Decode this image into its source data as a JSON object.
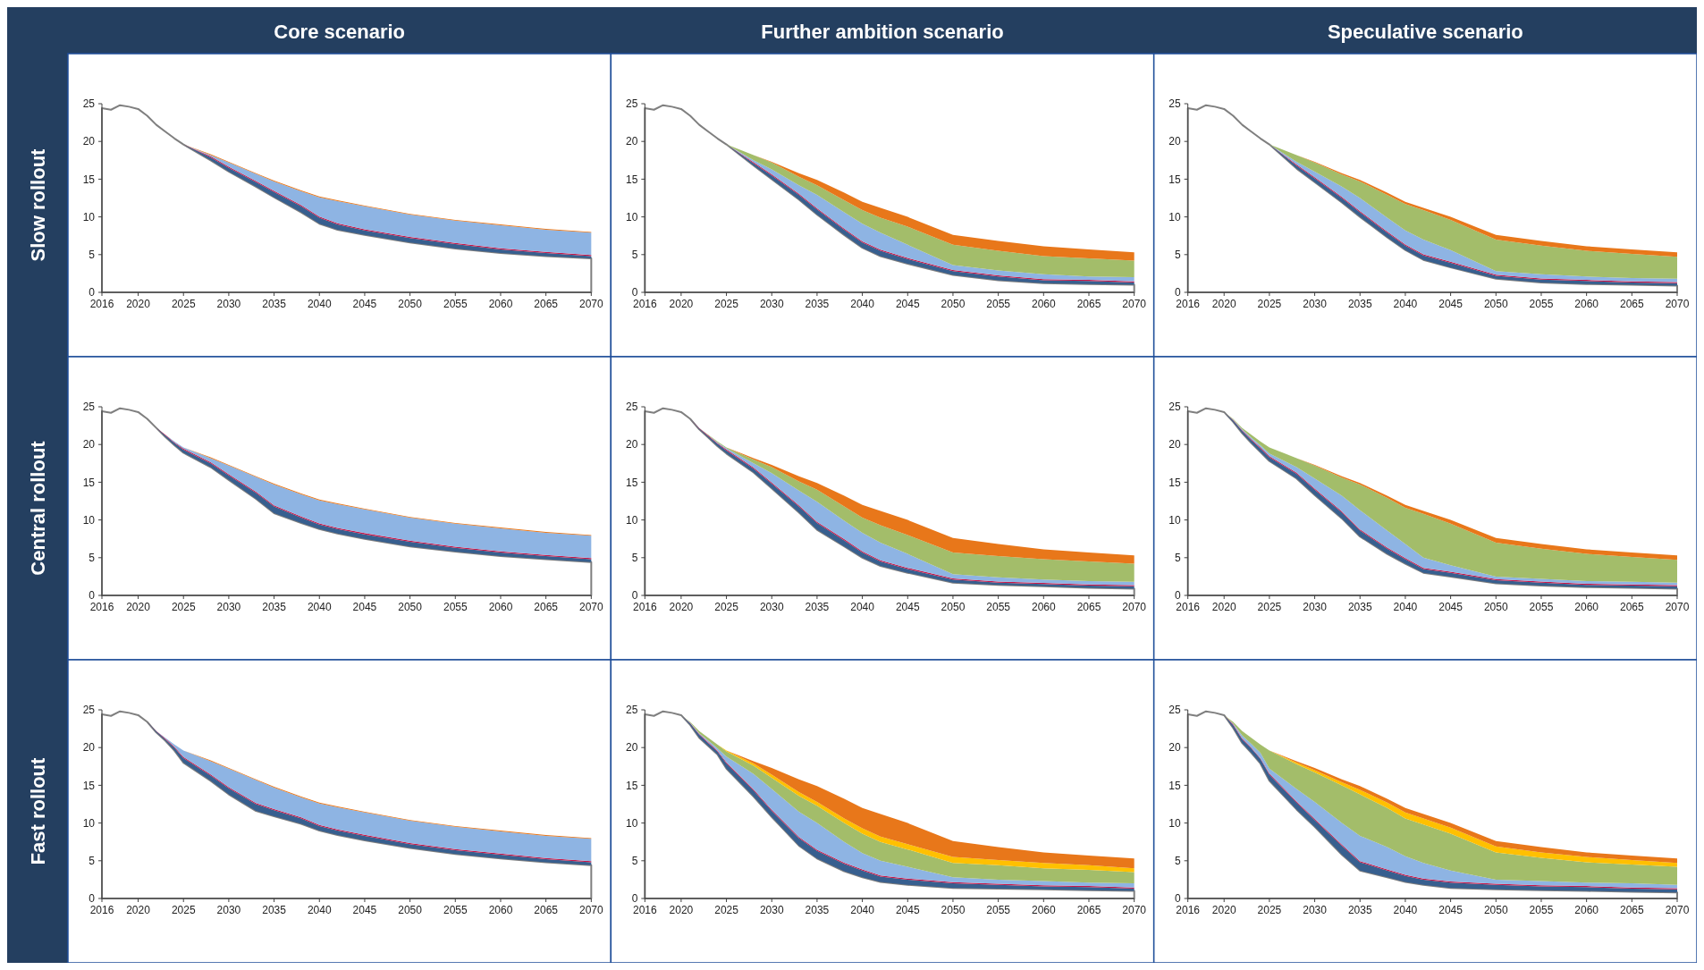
{
  "chart_data": [
    {
      "type": "area",
      "stacked": true,
      "title": "Core scenario",
      "ylabel": "Slow rollout",
      "x": [
        2016,
        2017,
        2018,
        2019,
        2020,
        2021,
        2022,
        2023,
        2024,
        2025,
        2028,
        2030,
        2033,
        2035,
        2038,
        2040,
        2042,
        2045,
        2050,
        2055,
        2060,
        2065,
        2070
      ],
      "xlim": [
        2016,
        2070
      ],
      "ylim": [
        0,
        25
      ],
      "xticks": [
        2016,
        2020,
        2025,
        2030,
        2035,
        2040,
        2045,
        2050,
        2055,
        2060,
        2065,
        2070
      ],
      "yticks": [
        0,
        5,
        10,
        15,
        20,
        25
      ],
      "series": [
        {
          "color": "#ffffff",
          "values": [
            24.4,
            24.2,
            24.8,
            24.6,
            24.3,
            23.4,
            22.2,
            21.3,
            20.4,
            19.6,
            17.5,
            16.0,
            14.0,
            12.6,
            10.6,
            9.1,
            8.3,
            7.6,
            6.6,
            5.8,
            5.2,
            4.8,
            4.5
          ]
        },
        {
          "color": "#375f8f",
          "values": [
            0,
            0,
            0,
            0,
            0,
            0,
            0,
            0,
            0,
            0,
            0.4,
            0.5,
            0.6,
            0.7,
            0.8,
            0.8,
            0.7,
            0.6,
            0.6,
            0.6,
            0.5,
            0.4,
            0.3
          ]
        },
        {
          "color": "#c8184a",
          "values": [
            0,
            0,
            0,
            0,
            0,
            0,
            0,
            0,
            0,
            0,
            0.15,
            0.15,
            0.15,
            0.15,
            0.15,
            0.15,
            0.15,
            0.15,
            0.15,
            0.15,
            0.15,
            0.15,
            0.15
          ]
        },
        {
          "color": "#8eb4e3",
          "values": [
            0,
            0,
            0,
            0,
            0,
            0,
            0,
            0,
            0,
            0,
            0.15,
            0.55,
            0.95,
            1.25,
            1.85,
            2.55,
            2.95,
            3.05,
            2.95,
            2.95,
            3.05,
            2.95,
            2.95
          ]
        },
        {
          "color": "#e8771a",
          "values": [
            0,
            0,
            0,
            0,
            0,
            0,
            0,
            0,
            0,
            0,
            0.1,
            0.1,
            0.1,
            0.1,
            0.1,
            0.1,
            0.1,
            0.1,
            0.1,
            0.1,
            0.1,
            0.1,
            0.1
          ]
        }
      ]
    },
    {
      "type": "area",
      "stacked": true,
      "title": "Further ambition scenario",
      "x": [
        2016,
        2017,
        2018,
        2019,
        2020,
        2021,
        2022,
        2023,
        2024,
        2025,
        2028,
        2030,
        2033,
        2035,
        2038,
        2040,
        2042,
        2045,
        2050,
        2055,
        2060,
        2065,
        2070
      ],
      "xlim": [
        2016,
        2070
      ],
      "ylim": [
        0,
        25
      ],
      "xticks": [
        2016,
        2020,
        2025,
        2030,
        2035,
        2040,
        2045,
        2050,
        2055,
        2060,
        2065,
        2070
      ],
      "yticks": [
        0,
        5,
        10,
        15,
        20,
        25
      ],
      "series": [
        {
          "color": "#ffffff",
          "values": [
            24.4,
            24.2,
            24.8,
            24.6,
            24.3,
            23.4,
            22.2,
            21.3,
            20.4,
            19.6,
            16.8,
            15.0,
            12.3,
            10.3,
            7.6,
            5.9,
            4.8,
            3.8,
            2.3,
            1.6,
            1.2,
            1.1,
            1.0
          ]
        },
        {
          "color": "#375f8f",
          "values": [
            0,
            0,
            0,
            0,
            0,
            0,
            0,
            0,
            0,
            0,
            0.3,
            0.5,
            0.6,
            0.7,
            0.7,
            0.7,
            0.7,
            0.6,
            0.5,
            0.5,
            0.4,
            0.4,
            0.3
          ]
        },
        {
          "color": "#c8184a",
          "values": [
            0,
            0,
            0,
            0,
            0,
            0,
            0,
            0,
            0,
            0,
            0.15,
            0.15,
            0.15,
            0.15,
            0.15,
            0.15,
            0.15,
            0.15,
            0.15,
            0.15,
            0.15,
            0.15,
            0.15
          ]
        },
        {
          "color": "#8eb4e3",
          "values": [
            0,
            0,
            0,
            0,
            0,
            0,
            0,
            0,
            0,
            0,
            0.25,
            0.65,
            1.15,
            1.75,
            2.15,
            2.35,
            2.25,
            1.75,
            0.65,
            0.65,
            0.65,
            0.45,
            0.55
          ]
        },
        {
          "color": "#a3bd6a",
          "values": [
            0,
            0,
            0,
            0,
            0,
            0,
            0,
            0,
            0,
            0,
            0.7,
            0.9,
            1.1,
            1.3,
            1.6,
            1.8,
            2.0,
            2.4,
            2.7,
            2.6,
            2.4,
            2.4,
            2.2
          ]
        },
        {
          "color": "#e8771a",
          "values": [
            0,
            0,
            0,
            0,
            0,
            0,
            0,
            0,
            0,
            0,
            0,
            0.1,
            0.5,
            0.7,
            1.0,
            1.1,
            1.3,
            1.3,
            1.3,
            1.3,
            1.3,
            1.2,
            1.1
          ]
        }
      ]
    },
    {
      "type": "area",
      "stacked": true,
      "title": "Speculative scenario",
      "x": [
        2016,
        2017,
        2018,
        2019,
        2020,
        2021,
        2022,
        2023,
        2024,
        2025,
        2028,
        2030,
        2033,
        2035,
        2038,
        2040,
        2042,
        2045,
        2050,
        2055,
        2060,
        2065,
        2070
      ],
      "xlim": [
        2016,
        2070
      ],
      "ylim": [
        0,
        25
      ],
      "xticks": [
        2016,
        2020,
        2025,
        2030,
        2035,
        2040,
        2045,
        2050,
        2055,
        2060,
        2065,
        2070
      ],
      "yticks": [
        0,
        5,
        10,
        15,
        20,
        25
      ],
      "series": [
        {
          "color": "#ffffff",
          "values": [
            24.4,
            24.2,
            24.8,
            24.6,
            24.3,
            23.4,
            22.2,
            21.3,
            20.4,
            19.6,
            16.4,
            14.6,
            11.9,
            10.0,
            7.3,
            5.6,
            4.3,
            3.3,
            1.8,
            1.3,
            1.1,
            1.0,
            0.9
          ]
        },
        {
          "color": "#375f8f",
          "values": [
            0,
            0,
            0,
            0,
            0,
            0,
            0,
            0,
            0,
            0,
            0.4,
            0.5,
            0.6,
            0.6,
            0.6,
            0.6,
            0.6,
            0.6,
            0.4,
            0.4,
            0.4,
            0.3,
            0.3
          ]
        },
        {
          "color": "#c8184a",
          "values": [
            0,
            0,
            0,
            0,
            0,
            0,
            0,
            0,
            0,
            0,
            0.15,
            0.15,
            0.15,
            0.15,
            0.15,
            0.15,
            0.15,
            0.15,
            0.15,
            0.15,
            0.15,
            0.15,
            0.15
          ]
        },
        {
          "color": "#8eb4e3",
          "values": [
            0,
            0,
            0,
            0,
            0,
            0,
            0,
            0,
            0,
            0,
            0.35,
            0.75,
            1.35,
            1.75,
            1.85,
            1.85,
            1.95,
            1.55,
            0.45,
            0.55,
            0.45,
            0.45,
            0.45
          ]
        },
        {
          "color": "#a3bd6a",
          "values": [
            0,
            0,
            0,
            0,
            0,
            0,
            0,
            0,
            0,
            0,
            0.9,
            1.2,
            1.6,
            2.2,
            3.0,
            3.5,
            3.9,
            4.0,
            4.2,
            3.8,
            3.4,
            3.2,
            2.9
          ]
        },
        {
          "color": "#e8771a",
          "values": [
            0,
            0,
            0,
            0,
            0,
            0,
            0,
            0,
            0,
            0,
            0,
            0.1,
            0.2,
            0.2,
            0.3,
            0.3,
            0.3,
            0.4,
            0.6,
            0.6,
            0.6,
            0.6,
            0.6
          ]
        }
      ]
    },
    {
      "type": "area",
      "stacked": true,
      "ylabel": "Central rollout",
      "x": [
        2016,
        2017,
        2018,
        2019,
        2020,
        2021,
        2022,
        2023,
        2024,
        2025,
        2028,
        2030,
        2033,
        2035,
        2038,
        2040,
        2042,
        2045,
        2050,
        2055,
        2060,
        2065,
        2070
      ],
      "xlim": [
        2016,
        2070
      ],
      "ylim": [
        0,
        25
      ],
      "xticks": [
        2016,
        2020,
        2025,
        2030,
        2035,
        2040,
        2045,
        2050,
        2055,
        2060,
        2065,
        2070
      ],
      "yticks": [
        0,
        5,
        10,
        15,
        20,
        25
      ],
      "series": [
        {
          "color": "#ffffff",
          "values": [
            24.4,
            24.2,
            24.8,
            24.6,
            24.3,
            23.4,
            22.2,
            21.0,
            19.9,
            18.9,
            17.0,
            15.3,
            12.8,
            10.9,
            9.6,
            8.8,
            8.2,
            7.5,
            6.5,
            5.8,
            5.2,
            4.8,
            4.4
          ]
        },
        {
          "color": "#375f8f",
          "values": [
            0,
            0,
            0,
            0,
            0,
            0,
            0,
            0.2,
            0.3,
            0.4,
            0.5,
            0.6,
            0.8,
            0.9,
            0.7,
            0.6,
            0.6,
            0.6,
            0.6,
            0.5,
            0.5,
            0.4,
            0.4
          ]
        },
        {
          "color": "#c8184a",
          "values": [
            0,
            0,
            0,
            0,
            0,
            0,
            0,
            0.1,
            0.1,
            0.15,
            0.15,
            0.15,
            0.15,
            0.15,
            0.15,
            0.15,
            0.15,
            0.15,
            0.15,
            0.15,
            0.15,
            0.15,
            0.15
          ]
        },
        {
          "color": "#8eb4e3",
          "values": [
            0,
            0,
            0,
            0,
            0,
            0,
            0,
            0,
            0.1,
            0.15,
            0.55,
            1.15,
            1.95,
            2.75,
            2.95,
            3.05,
            3.15,
            3.15,
            3.05,
            3.05,
            3.05,
            2.95,
            2.95
          ]
        },
        {
          "color": "#e8771a",
          "values": [
            0,
            0,
            0,
            0,
            0,
            0,
            0,
            0,
            0,
            0,
            0.1,
            0.1,
            0.1,
            0.1,
            0.1,
            0.1,
            0.1,
            0.1,
            0.1,
            0.1,
            0.1,
            0.1,
            0.1
          ]
        }
      ]
    },
    {
      "type": "area",
      "stacked": true,
      "x": [
        2016,
        2017,
        2018,
        2019,
        2020,
        2021,
        2022,
        2023,
        2024,
        2025,
        2028,
        2030,
        2033,
        2035,
        2038,
        2040,
        2042,
        2045,
        2050,
        2055,
        2060,
        2065,
        2070
      ],
      "xlim": [
        2016,
        2070
      ],
      "ylim": [
        0,
        25
      ],
      "xticks": [
        2016,
        2020,
        2025,
        2030,
        2035,
        2040,
        2045,
        2050,
        2055,
        2060,
        2065,
        2070
      ],
      "yticks": [
        0,
        5,
        10,
        15,
        20,
        25
      ],
      "series": [
        {
          "color": "#ffffff",
          "values": [
            24.4,
            24.2,
            24.8,
            24.6,
            24.3,
            23.4,
            22.0,
            20.9,
            19.8,
            18.8,
            16.3,
            14.2,
            11.0,
            8.7,
            6.5,
            5.0,
            3.9,
            3.0,
            1.7,
            1.4,
            1.2,
            1.0,
            0.9
          ]
        },
        {
          "color": "#375f8f",
          "values": [
            0,
            0,
            0,
            0,
            0,
            0,
            0.1,
            0.2,
            0.3,
            0.4,
            0.5,
            0.6,
            0.8,
            0.9,
            0.8,
            0.7,
            0.6,
            0.5,
            0.4,
            0.3,
            0.3,
            0.3,
            0.3
          ]
        },
        {
          "color": "#c8184a",
          "values": [
            0,
            0,
            0,
            0,
            0,
            0,
            0.05,
            0.1,
            0.1,
            0.15,
            0.15,
            0.15,
            0.15,
            0.15,
            0.15,
            0.15,
            0.15,
            0.15,
            0.15,
            0.15,
            0.15,
            0.15,
            0.15
          ]
        },
        {
          "color": "#8eb4e3",
          "values": [
            0,
            0,
            0,
            0,
            0,
            0,
            0.05,
            0.05,
            0.1,
            0.15,
            0.55,
            1.25,
            1.95,
            2.65,
            2.45,
            2.45,
            2.35,
            1.85,
            0.55,
            0.55,
            0.45,
            0.45,
            0.45
          ]
        },
        {
          "color": "#a3bd6a",
          "values": [
            0,
            0,
            0,
            0,
            0,
            0,
            0,
            0.05,
            0.1,
            0.1,
            0.5,
            0.8,
            1.2,
            1.6,
            1.9,
            2.0,
            2.3,
            2.5,
            2.9,
            2.8,
            2.7,
            2.6,
            2.4
          ]
        },
        {
          "color": "#e8771a",
          "values": [
            0,
            0,
            0,
            0,
            0,
            0,
            0,
            0,
            0,
            0,
            0.2,
            0.3,
            0.7,
            0.9,
            1.4,
            1.7,
            1.9,
            2.0,
            1.9,
            1.6,
            1.3,
            1.2,
            1.1
          ]
        }
      ]
    },
    {
      "type": "area",
      "stacked": true,
      "x": [
        2016,
        2017,
        2018,
        2019,
        2020,
        2021,
        2022,
        2023,
        2024,
        2025,
        2028,
        2030,
        2033,
        2035,
        2038,
        2040,
        2042,
        2045,
        2050,
        2055,
        2060,
        2065,
        2070
      ],
      "xlim": [
        2016,
        2070
      ],
      "ylim": [
        0,
        25
      ],
      "xticks": [
        2016,
        2020,
        2025,
        2030,
        2035,
        2040,
        2045,
        2050,
        2055,
        2060,
        2065,
        2070
      ],
      "yticks": [
        0,
        5,
        10,
        15,
        20,
        25
      ],
      "series": [
        {
          "color": "#ffffff",
          "values": [
            24.4,
            24.2,
            24.8,
            24.6,
            24.3,
            23.0,
            21.5,
            20.2,
            19.0,
            17.8,
            15.5,
            13.3,
            10.2,
            7.8,
            5.5,
            4.2,
            3.0,
            2.5,
            1.6,
            1.3,
            1.1,
            1.0,
            0.9
          ]
        },
        {
          "color": "#375f8f",
          "values": [
            0,
            0,
            0,
            0,
            0,
            0.2,
            0.3,
            0.4,
            0.5,
            0.5,
            0.6,
            0.7,
            0.8,
            0.8,
            0.7,
            0.6,
            0.5,
            0.5,
            0.4,
            0.4,
            0.3,
            0.3,
            0.3
          ]
        },
        {
          "color": "#c8184a",
          "values": [
            0,
            0,
            0,
            0,
            0,
            0.05,
            0.1,
            0.1,
            0.15,
            0.15,
            0.15,
            0.15,
            0.15,
            0.15,
            0.15,
            0.15,
            0.15,
            0.15,
            0.15,
            0.15,
            0.15,
            0.15,
            0.15
          ]
        },
        {
          "color": "#8eb4e3",
          "values": [
            0,
            0,
            0,
            0,
            0,
            0.05,
            0.1,
            0.2,
            0.25,
            0.35,
            0.75,
            1.35,
            2.05,
            2.55,
            2.25,
            1.85,
            1.35,
            0.85,
            0.35,
            0.35,
            0.35,
            0.35,
            0.35
          ]
        },
        {
          "color": "#a3bd6a",
          "values": [
            0,
            0,
            0,
            0,
            0,
            0.1,
            0.2,
            0.4,
            0.5,
            0.8,
            1.2,
            1.7,
            2.4,
            3.4,
            4.3,
            4.8,
            5.8,
            5.5,
            4.5,
            4.0,
            3.6,
            3.3,
            3.0
          ]
        },
        {
          "color": "#e8771a",
          "values": [
            0,
            0,
            0,
            0,
            0,
            0,
            0,
            0,
            0,
            0,
            0,
            0.1,
            0.2,
            0.2,
            0.3,
            0.4,
            0.4,
            0.5,
            0.6,
            0.6,
            0.6,
            0.6,
            0.6
          ]
        }
      ]
    },
    {
      "type": "area",
      "stacked": true,
      "ylabel": "Fast rollout",
      "x": [
        2016,
        2017,
        2018,
        2019,
        2020,
        2021,
        2022,
        2023,
        2024,
        2025,
        2028,
        2030,
        2033,
        2035,
        2038,
        2040,
        2042,
        2045,
        2050,
        2055,
        2060,
        2065,
        2070
      ],
      "xlim": [
        2016,
        2070
      ],
      "ylim": [
        0,
        25
      ],
      "xticks": [
        2016,
        2020,
        2025,
        2030,
        2035,
        2040,
        2045,
        2050,
        2055,
        2060,
        2065,
        2070
      ],
      "yticks": [
        0,
        5,
        10,
        15,
        20,
        25
      ],
      "series": [
        {
          "color": "#ffffff",
          "values": [
            24.4,
            24.2,
            24.8,
            24.6,
            24.3,
            23.4,
            22.0,
            20.9,
            19.6,
            18.0,
            15.6,
            13.8,
            11.6,
            10.9,
            9.9,
            9.0,
            8.4,
            7.7,
            6.7,
            5.9,
            5.3,
            4.8,
            4.4
          ]
        },
        {
          "color": "#375f8f",
          "values": [
            0,
            0,
            0,
            0,
            0,
            0,
            0.15,
            0.2,
            0.4,
            0.6,
            0.7,
            0.8,
            0.9,
            0.8,
            0.7,
            0.6,
            0.6,
            0.6,
            0.5,
            0.5,
            0.5,
            0.4,
            0.4
          ]
        },
        {
          "color": "#c8184a",
          "values": [
            0,
            0,
            0,
            0,
            0,
            0,
            0.05,
            0.1,
            0.1,
            0.15,
            0.15,
            0.15,
            0.15,
            0.15,
            0.15,
            0.15,
            0.15,
            0.15,
            0.15,
            0.15,
            0.15,
            0.15,
            0.15
          ]
        },
        {
          "color": "#8eb4e3",
          "values": [
            0,
            0,
            0,
            0,
            0,
            0,
            0,
            0.1,
            0.3,
            0.85,
            1.75,
            2.45,
            3.05,
            2.85,
            2.65,
            2.85,
            2.95,
            2.95,
            2.95,
            2.95,
            2.95,
            2.95,
            2.95
          ]
        },
        {
          "color": "#e8771a",
          "values": [
            0,
            0,
            0,
            0,
            0,
            0,
            0,
            0,
            0,
            0,
            0.1,
            0.1,
            0.1,
            0.1,
            0.1,
            0.1,
            0.1,
            0.1,
            0.1,
            0.1,
            0.1,
            0.1,
            0.1
          ]
        }
      ]
    },
    {
      "type": "area",
      "stacked": true,
      "x": [
        2016,
        2017,
        2018,
        2019,
        2020,
        2021,
        2022,
        2023,
        2024,
        2025,
        2028,
        2030,
        2033,
        2035,
        2038,
        2040,
        2042,
        2045,
        2050,
        2055,
        2060,
        2065,
        2070
      ],
      "xlim": [
        2016,
        2070
      ],
      "ylim": [
        0,
        25
      ],
      "xticks": [
        2016,
        2020,
        2025,
        2030,
        2035,
        2040,
        2045,
        2050,
        2055,
        2060,
        2065,
        2070
      ],
      "yticks": [
        0,
        5,
        10,
        15,
        20,
        25
      ],
      "series": [
        {
          "color": "#ffffff",
          "values": [
            24.4,
            24.2,
            24.8,
            24.6,
            24.3,
            23.0,
            21.3,
            20.2,
            19.1,
            17.2,
            13.5,
            10.8,
            7.0,
            5.3,
            3.6,
            2.8,
            2.2,
            1.8,
            1.4,
            1.3,
            1.2,
            1.1,
            1.0
          ]
        },
        {
          "color": "#375f8f",
          "values": [
            0,
            0,
            0,
            0,
            0,
            0.2,
            0.4,
            0.4,
            0.4,
            0.7,
            0.8,
            0.8,
            1.0,
            1.0,
            1.0,
            0.9,
            0.7,
            0.7,
            0.6,
            0.5,
            0.4,
            0.4,
            0.3
          ]
        },
        {
          "color": "#c8184a",
          "values": [
            0,
            0,
            0,
            0,
            0,
            0.05,
            0.1,
            0.1,
            0.1,
            0.15,
            0.15,
            0.15,
            0.15,
            0.15,
            0.15,
            0.15,
            0.15,
            0.15,
            0.15,
            0.15,
            0.15,
            0.15,
            0.15
          ]
        },
        {
          "color": "#8eb4e3",
          "values": [
            0,
            0,
            0,
            0,
            0,
            0.05,
            0.1,
            0.2,
            0.3,
            0.75,
            2.05,
            2.75,
            3.35,
            3.55,
            2.75,
            2.15,
            1.95,
            1.55,
            0.65,
            0.55,
            0.55,
            0.45,
            0.55
          ]
        },
        {
          "color": "#a3bd6a",
          "values": [
            0,
            0,
            0,
            0,
            0,
            0.1,
            0.3,
            0.4,
            0.5,
            0.7,
            1.1,
            1.5,
            2.1,
            2.3,
            2.5,
            2.6,
            2.5,
            2.3,
            1.9,
            1.9,
            1.7,
            1.7,
            1.5
          ]
        },
        {
          "color": "#ffc000",
          "values": [
            0,
            0,
            0,
            0,
            0,
            0,
            0,
            0,
            0,
            0.1,
            0.3,
            0.4,
            0.5,
            0.5,
            0.6,
            0.7,
            0.7,
            0.7,
            0.8,
            0.7,
            0.7,
            0.6,
            0.5
          ]
        },
        {
          "color": "#e8771a",
          "values": [
            0,
            0,
            0,
            0,
            0,
            0,
            0,
            0,
            0,
            0,
            0.3,
            0.9,
            1.7,
            2.1,
            2.6,
            2.7,
            3.0,
            2.8,
            2.1,
            1.7,
            1.4,
            1.3,
            1.3
          ]
        }
      ]
    },
    {
      "type": "area",
      "stacked": true,
      "x": [
        2016,
        2017,
        2018,
        2019,
        2020,
        2021,
        2022,
        2023,
        2024,
        2025,
        2028,
        2030,
        2033,
        2035,
        2038,
        2040,
        2042,
        2045,
        2050,
        2055,
        2060,
        2065,
        2070
      ],
      "xlim": [
        2016,
        2070
      ],
      "ylim": [
        0,
        25
      ],
      "xticks": [
        2016,
        2020,
        2025,
        2030,
        2035,
        2040,
        2045,
        2050,
        2055,
        2060,
        2065,
        2070
      ],
      "yticks": [
        0,
        5,
        10,
        15,
        20,
        25
      ],
      "series": [
        {
          "color": "#ffffff",
          "values": [
            24.4,
            24.2,
            24.8,
            24.6,
            24.3,
            22.6,
            20.6,
            19.3,
            17.9,
            15.6,
            11.8,
            9.5,
            5.8,
            3.7,
            2.8,
            2.2,
            1.8,
            1.4,
            1.2,
            1.1,
            1.0,
            0.9,
            0.8
          ]
        },
        {
          "color": "#375f8f",
          "values": [
            0,
            0,
            0,
            0,
            0,
            0.4,
            0.5,
            0.6,
            0.6,
            0.8,
            0.9,
            0.9,
            1.2,
            1.1,
            0.9,
            0.8,
            0.7,
            0.7,
            0.6,
            0.5,
            0.5,
            0.4,
            0.4
          ]
        },
        {
          "color": "#c8184a",
          "values": [
            0,
            0,
            0,
            0,
            0,
            0.1,
            0.1,
            0.1,
            0.1,
            0.15,
            0.15,
            0.15,
            0.15,
            0.15,
            0.15,
            0.15,
            0.15,
            0.15,
            0.15,
            0.15,
            0.15,
            0.15,
            0.15
          ]
        },
        {
          "color": "#8eb4e3",
          "values": [
            0,
            0,
            0,
            0,
            0,
            0.1,
            0.4,
            0.5,
            0.7,
            0.65,
            1.65,
            2.25,
            2.85,
            3.35,
            2.95,
            2.45,
            2.05,
            1.45,
            0.55,
            0.55,
            0.45,
            0.55,
            0.45
          ]
        },
        {
          "color": "#a3bd6a",
          "values": [
            0,
            0,
            0,
            0,
            0,
            0.2,
            0.6,
            0.8,
            1.1,
            2.4,
            3.3,
            3.9,
            5.0,
            5.5,
            5.2,
            5.0,
            5.1,
            4.9,
            3.6,
            3.1,
            2.7,
            2.5,
            2.4
          ]
        },
        {
          "color": "#ffc000",
          "values": [
            0,
            0,
            0,
            0,
            0,
            0,
            0,
            0,
            0,
            0,
            0.2,
            0.3,
            0.4,
            0.6,
            0.7,
            0.8,
            0.8,
            0.8,
            0.8,
            0.7,
            0.7,
            0.6,
            0.5
          ]
        },
        {
          "color": "#e8771a",
          "values": [
            0,
            0,
            0,
            0,
            0,
            0,
            0,
            0,
            0,
            0,
            0.2,
            0.3,
            0.4,
            0.5,
            0.5,
            0.6,
            0.6,
            0.6,
            0.7,
            0.7,
            0.6,
            0.6,
            0.6
          ]
        }
      ]
    }
  ]
}
